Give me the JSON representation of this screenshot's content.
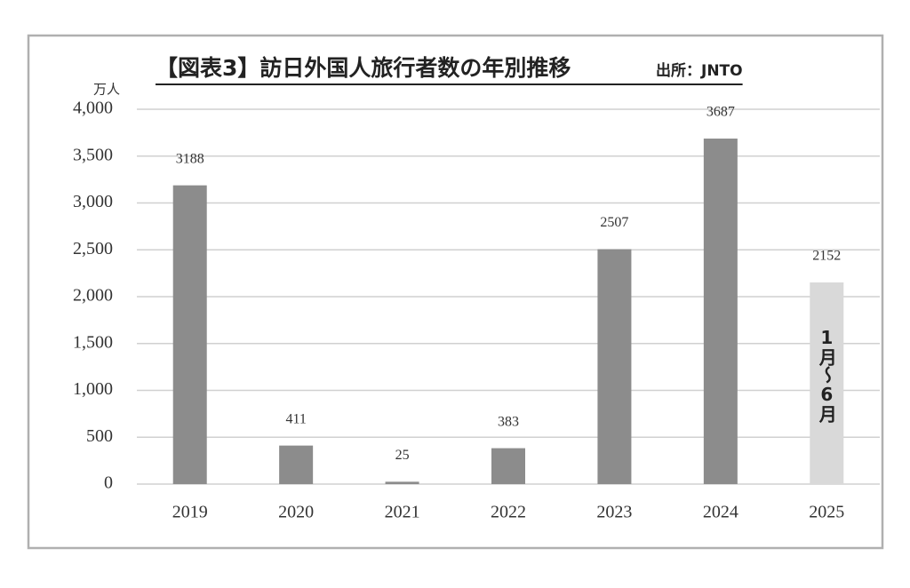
{
  "chart_data": {
    "type": "bar",
    "title": "【図表3】訪日外国人旅行者数の年別推移",
    "source": "出所：JNTO",
    "y_label": "万人",
    "categories": [
      "2019",
      "2020",
      "2021",
      "2022",
      "2023",
      "2024",
      "2025"
    ],
    "values": [
      3188,
      411,
      25,
      383,
      2507,
      3687,
      2152
    ],
    "colors": [
      "#8c8c8c",
      "#8c8c8c",
      "#8c8c8c",
      "#8c8c8c",
      "#8c8c8c",
      "#8c8c8c",
      "#d9d9d9"
    ],
    "annotation": "1月〜6月",
    "ylim": [
      0,
      4000
    ],
    "yticks": [
      0,
      500,
      {
        "value": 1000,
        "label": "1,000"
      },
      {
        "value": 1500,
        "label": "1,500"
      },
      {
        "value": 2000,
        "label": "2,000"
      },
      {
        "value": 2500,
        "label": "2,500"
      },
      {
        "value": 3000,
        "label": "3,000"
      },
      {
        "value": 3500,
        "label": "3,500"
      },
      {
        "value": 4000,
        "label": "4,000"
      }
    ],
    "grid": true
  }
}
